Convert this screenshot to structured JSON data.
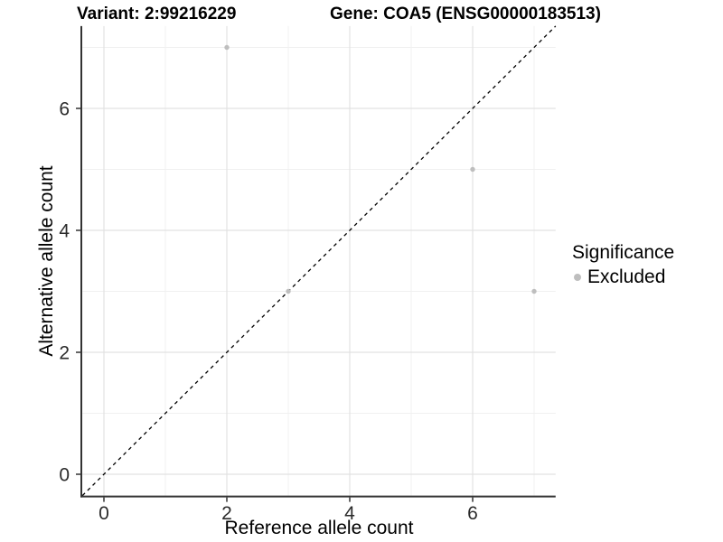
{
  "header": {
    "left_title": "Variant: 2:99216229",
    "right_title": "Gene: COA5 (ENSG00000183513)"
  },
  "chart_data": {
    "type": "scatter",
    "xlabel": "Reference allele count",
    "ylabel": "Alternative allele count",
    "xlim": [
      -0.35,
      7.35
    ],
    "ylim": [
      -0.35,
      7.35
    ],
    "x_major_ticks": [
      0,
      2,
      4,
      6
    ],
    "y_major_ticks": [
      0,
      2,
      4,
      6
    ],
    "x_minor_gridlines": [
      1,
      3,
      5,
      7
    ],
    "y_minor_gridlines": [
      1,
      3,
      5,
      7
    ],
    "grid": "major-and-minor",
    "identity_line": {
      "slope": 1,
      "intercept": 0,
      "style": "dashed",
      "color": "#000000"
    },
    "series": [
      {
        "name": "Excluded",
        "color": "#BEBEBE",
        "points": [
          [
            2,
            7
          ],
          [
            3,
            3
          ],
          [
            6,
            5
          ],
          [
            7,
            3
          ]
        ]
      }
    ],
    "legend": {
      "title": "Significance",
      "position": "right",
      "entries": [
        {
          "label": "Excluded",
          "color": "#BEBEBE"
        }
      ]
    },
    "colors": {
      "major_grid": "#E2E2E2",
      "minor_grid": "#F0F0F0",
      "axis_line": "#333333",
      "tick_label": "#2B2B2B"
    }
  }
}
